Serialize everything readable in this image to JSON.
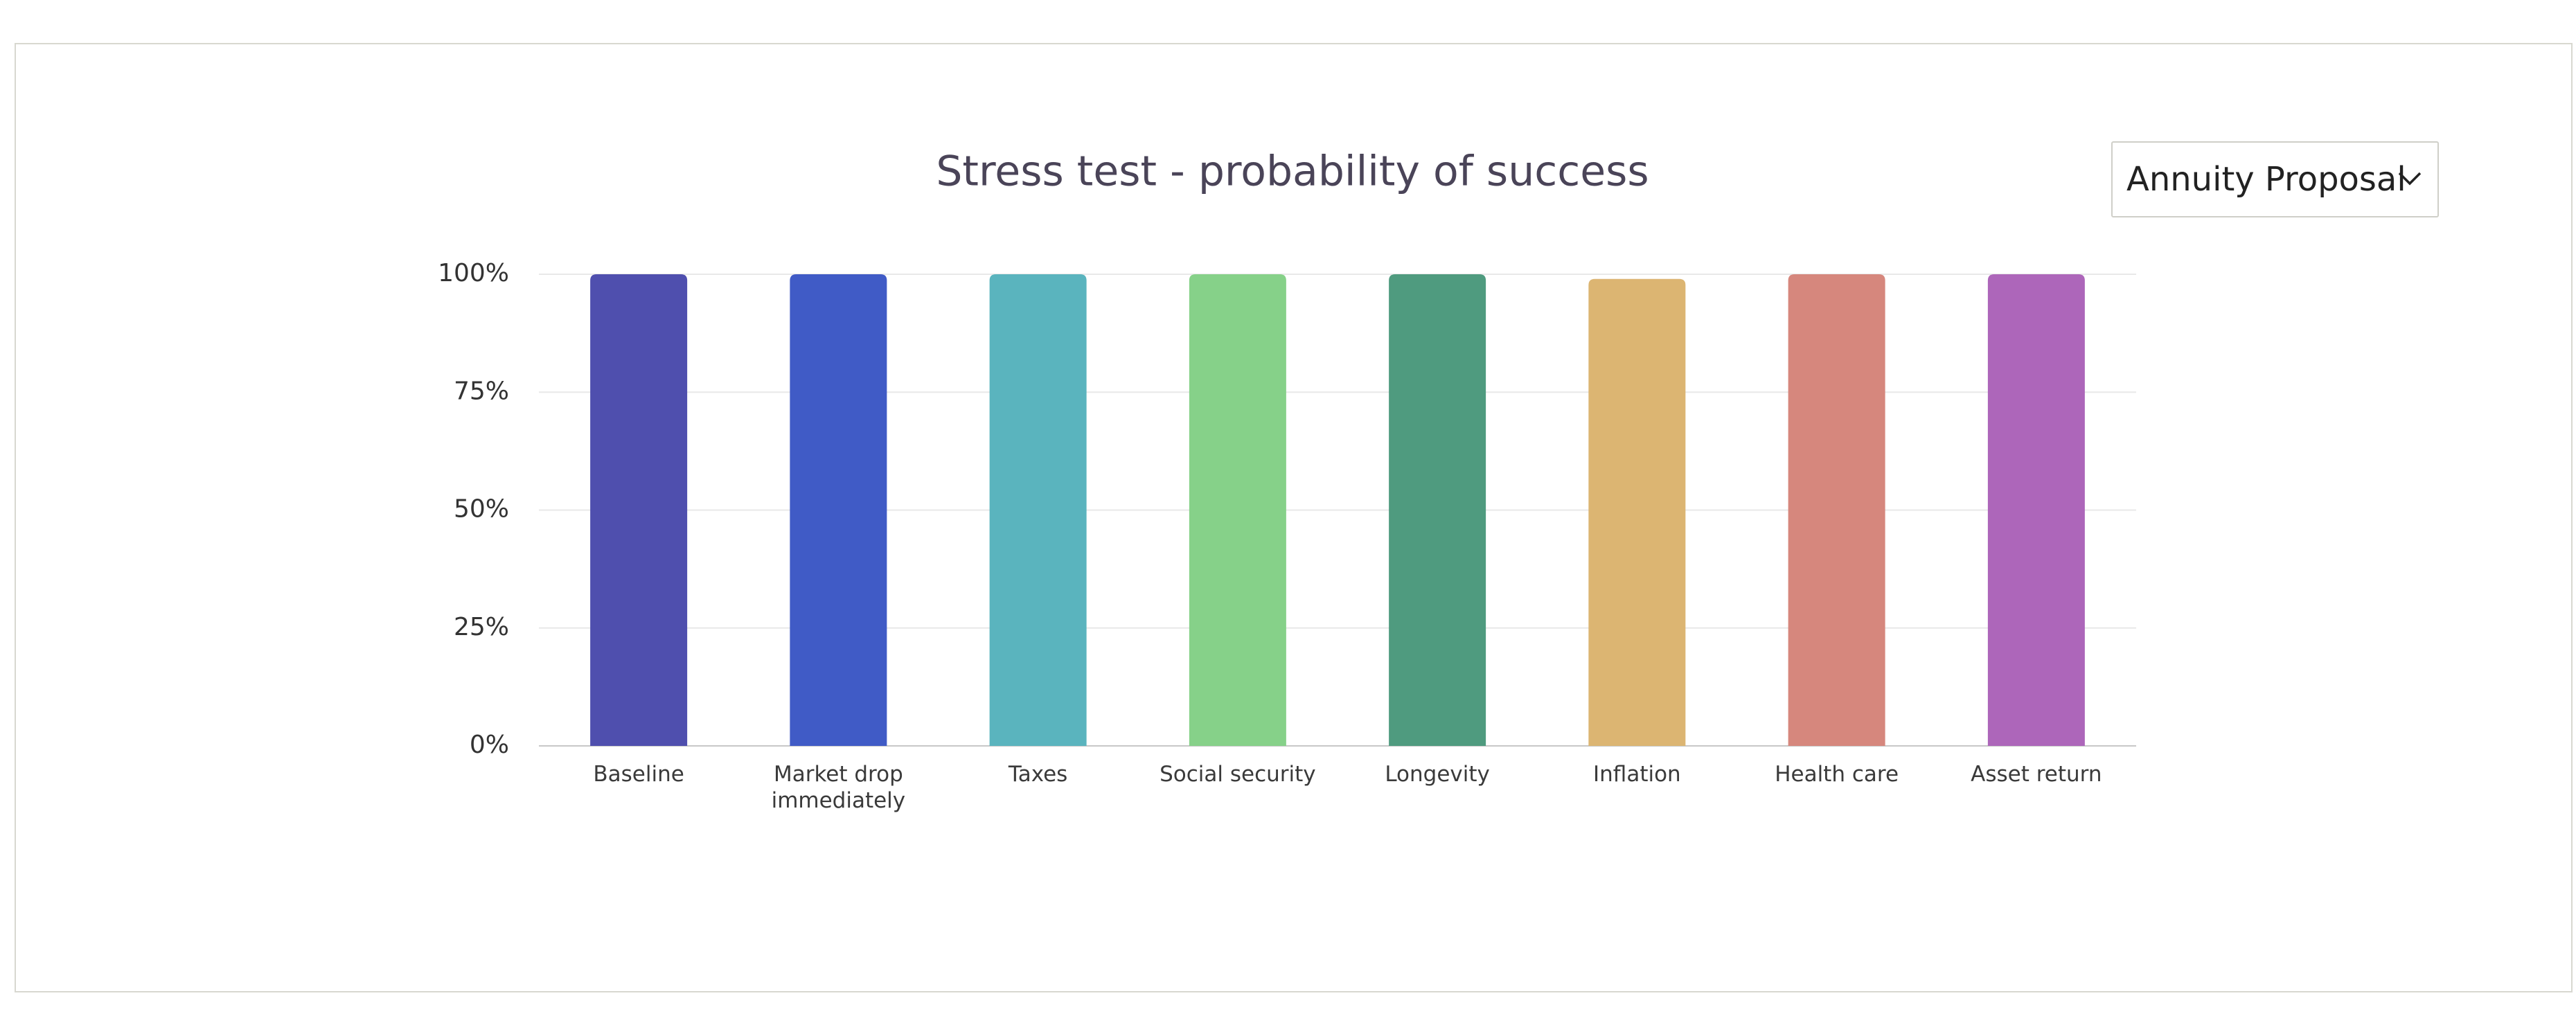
{
  "dropdown": {
    "label": "Annuity Proposal"
  },
  "chart_data": {
    "type": "bar",
    "title": "Stress test - probability of success",
    "categories": [
      "Baseline",
      "Market drop immediately",
      "Taxes",
      "Social security",
      "Longevity",
      "Inflation",
      "Health care",
      "Asset return"
    ],
    "values": [
      100,
      100,
      100,
      100,
      100,
      99,
      100,
      100
    ],
    "colors": [
      "#4f4fae",
      "#405bc6",
      "#5ab4be",
      "#86d189",
      "#4f9b7f",
      "#dcb572",
      "#d6877d",
      "#ad66ba"
    ],
    "ylim": [
      0,
      100
    ],
    "yticks": [
      {
        "value": 0,
        "label": "0%"
      },
      {
        "value": 25,
        "label": "25%"
      },
      {
        "value": 50,
        "label": "50%"
      },
      {
        "value": 75,
        "label": "75%"
      },
      {
        "value": 100,
        "label": "100%"
      }
    ],
    "grid": true
  }
}
